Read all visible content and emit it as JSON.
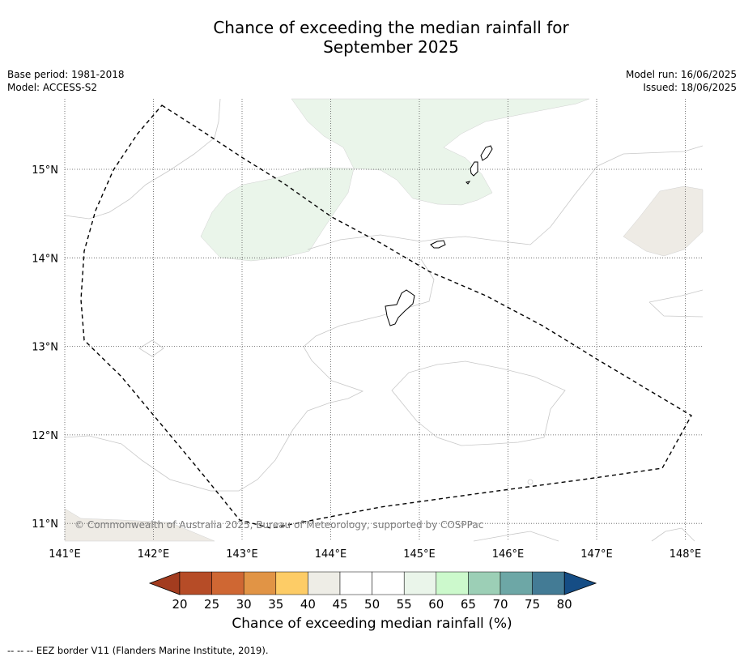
{
  "title": {
    "line1": "Chance of exceeding the median rainfall for",
    "line2": "September 2025"
  },
  "meta": {
    "base_period": "Base period: 1981-2018",
    "model": "Model: ACCESS-S2",
    "model_run": "Model run: 16/06/2025",
    "issued": "Issued: 18/06/2025"
  },
  "map": {
    "lon_ticks": [
      141,
      142,
      143,
      144,
      145,
      146,
      147,
      148
    ],
    "lon_labels": [
      "141°E",
      "142°E",
      "143°E",
      "144°E",
      "145°E",
      "146°E",
      "147°E",
      "148°E"
    ],
    "lat_ticks": [
      15,
      14,
      13,
      12,
      11
    ],
    "lat_labels": [
      "15°N",
      "14°N",
      "13°N",
      "12°N",
      "11°N"
    ],
    "copyright": "© Commonwealth of Australia 2025, Bureau of Meteorology, supported by COSPPac",
    "colors": {
      "light_green": "#eaf5ea",
      "light_grey": "#eeebe5",
      "border": "#000000",
      "grid": "#555555"
    }
  },
  "colorbar": {
    "tick_labels": [
      "20",
      "25",
      "30",
      "35",
      "40",
      "45",
      "50",
      "55",
      "60",
      "65",
      "70",
      "75",
      "80"
    ],
    "colors": [
      "#a33c1f",
      "#b64c27",
      "#cf6733",
      "#e19445",
      "#fdcc66",
      "#eeede6",
      "#ffffff",
      "#ffffff",
      "#eaf5ea",
      "#ccf9cc",
      "#9ccfb6",
      "#6da7a6",
      "#437b95",
      "#154d85"
    ],
    "label": "Chance of exceeding median rainfall (%)"
  },
  "footnote": "--  --  -- EEZ border V11 (Flanders Marine Institute, 2019)."
}
